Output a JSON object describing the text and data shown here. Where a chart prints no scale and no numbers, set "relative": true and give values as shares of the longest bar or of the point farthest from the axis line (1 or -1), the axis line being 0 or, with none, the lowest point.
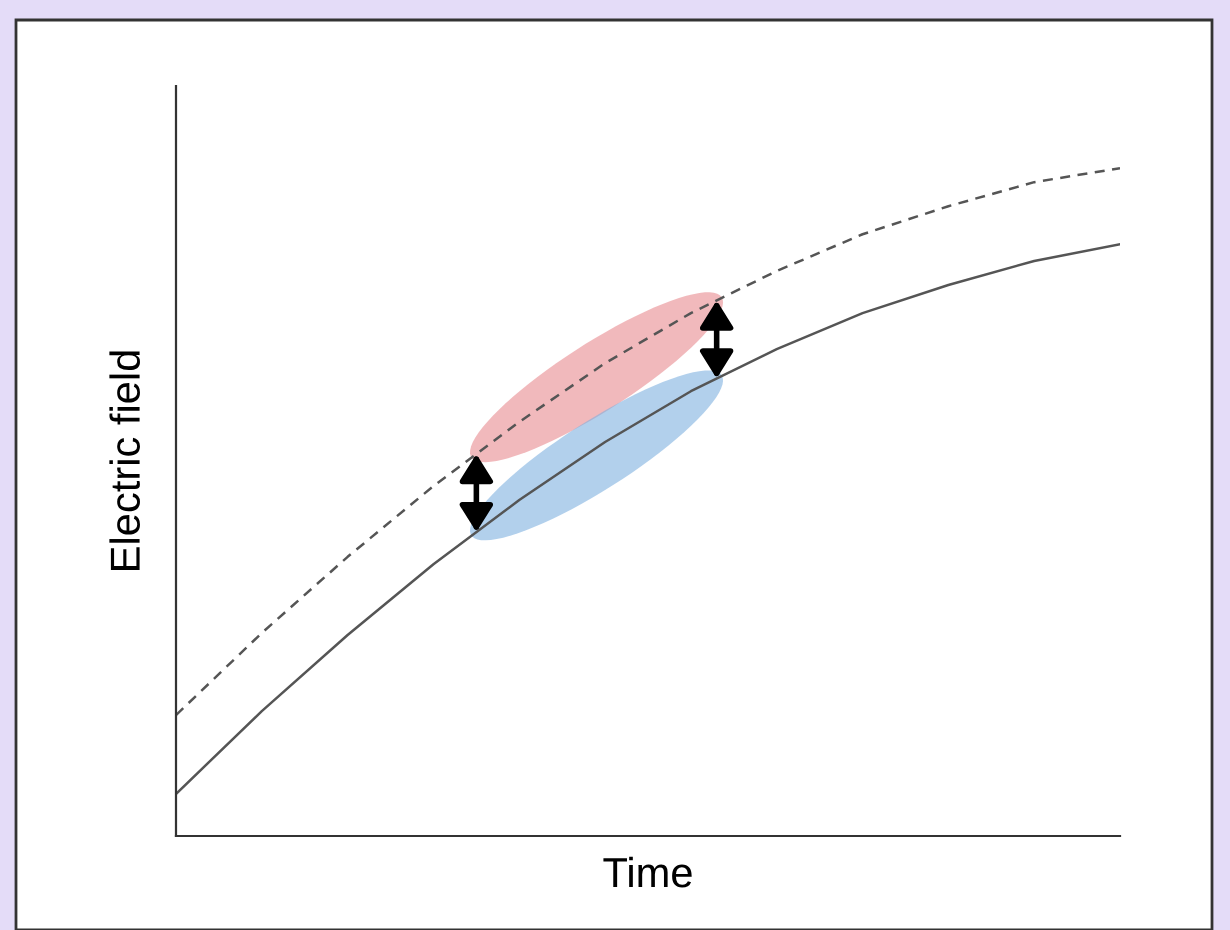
{
  "chart_data": {
    "type": "line",
    "xlabel": "Time",
    "ylabel": "Electric field",
    "relative": true,
    "categories": [
      null,
      null,
      null,
      null,
      null,
      null,
      null,
      null,
      null,
      null,
      null,
      null
    ],
    "series": [
      {
        "color": "#555555",
        "line_style": "solid",
        "values": [
          0.063,
          0.187,
          0.301,
          0.407,
          0.503,
          0.59,
          0.666,
          0.729,
          0.783,
          0.825,
          0.861,
          0.886
        ]
      },
      {
        "color": "#555555",
        "line_style": "dashed",
        "values": [
          0.181,
          0.304,
          0.418,
          0.524,
          0.62,
          0.708,
          0.783,
          0.846,
          0.901,
          0.943,
          0.979,
          1.0
        ]
      }
    ]
  }
}
